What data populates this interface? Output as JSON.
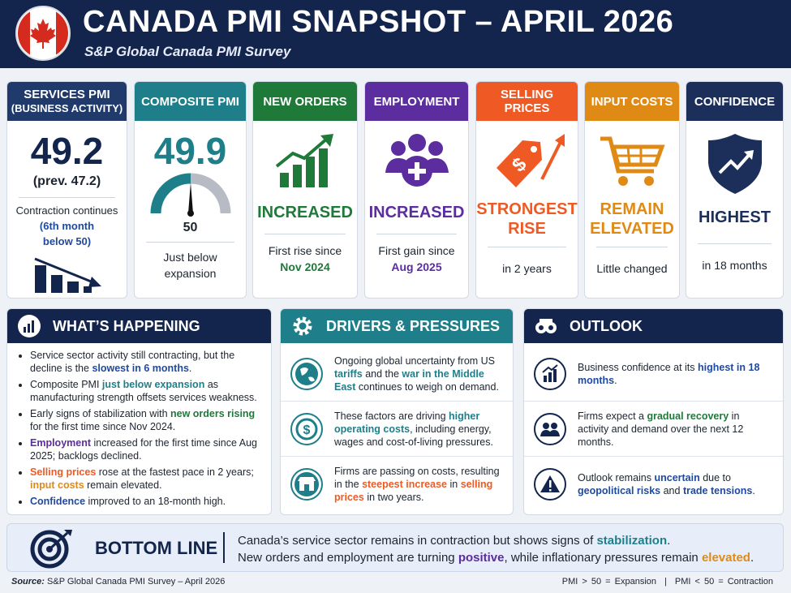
{
  "header": {
    "title": "CANADA PMI SNAPSHOT – APRIL 2026",
    "subtitle": "S&P Global Canada PMI Survey"
  },
  "cards": [
    {
      "title": [
        "SERVICES PMI",
        "(BUSINESS ACTIVITY)"
      ],
      "value": "49.2",
      "previous": "(prev. 47.2)",
      "detail": [
        "Contraction continues",
        "(6th month",
        "below 50)"
      ]
    },
    {
      "title": [
        "COMPOSITE PMI"
      ],
      "value": "49.9",
      "gauge_label": "50",
      "detail": [
        "Just below",
        "expansion"
      ]
    },
    {
      "title": [
        "NEW ORDERS"
      ],
      "status": [
        "INCREASED"
      ],
      "detail": [
        "First rise since",
        "Nov 2024"
      ]
    },
    {
      "title": [
        "EMPLOYMENT"
      ],
      "status": [
        "INCREASED"
      ],
      "detail": [
        "First gain since",
        "Aug 2025"
      ]
    },
    {
      "title": [
        "SELLING PRICES"
      ],
      "status": [
        "STRONGEST",
        "RISE"
      ],
      "detail": [
        "in 2 years"
      ]
    },
    {
      "title": [
        "INPUT COSTS"
      ],
      "status": [
        "REMAIN",
        "ELEVATED"
      ],
      "detail": [
        "Little changed"
      ]
    },
    {
      "title": [
        "CONFIDENCE"
      ],
      "status": [
        "HIGHEST"
      ],
      "detail": [
        "in 18 months"
      ]
    }
  ],
  "panels": {
    "whats_happening": {
      "title": "WHAT’S HAPPENING",
      "bullets": [
        [
          "Service sector activity still contracting, but the decline is the ",
          "slowest in 6 months",
          "."
        ],
        [
          "Composite PMI ",
          "just below expansion",
          " as manufacturing strength offsets services weakness."
        ],
        [
          "Early signs of stabilization with ",
          "new orders rising",
          " for the first time since Nov 2024."
        ],
        [
          "Employment",
          " increased for the first time since Aug 2025; backlogs declined."
        ],
        [
          "Selling prices",
          " rose at the fastest pace in 2 years; ",
          "input costs",
          " remain elevated."
        ],
        [
          "Confidence",
          " improved to an 18-month high."
        ]
      ]
    },
    "drivers": {
      "title": "DRIVERS & PRESSURES",
      "items": [
        [
          "Ongoing global uncertainty from US ",
          "tariffs",
          " and the ",
          "war in the Middle East",
          " continues to weigh on demand."
        ],
        [
          "These factors are driving ",
          "higher operating costs",
          ", including energy, wages and cost-of-living pressures."
        ],
        [
          "Firms are passing on costs, resulting in the ",
          "steepest increase",
          " in ",
          "selling prices",
          " in two years."
        ]
      ]
    },
    "outlook": {
      "title": "OUTLOOK",
      "items": [
        [
          "Business confidence at its ",
          "highest in 18 months",
          "."
        ],
        [
          "Firms expect a ",
          "gradual recovery",
          " in activity and demand over the next 12 months."
        ],
        [
          "Outlook remains ",
          "uncertain",
          " due to ",
          "geopolitical risks",
          " and ",
          "trade tensions",
          "."
        ]
      ]
    }
  },
  "bottom_line": {
    "title": "BOTTOM LINE",
    "lines": [
      [
        "Canada’s service sector  remains in contraction but shows signs of ",
        "stabilization",
        "."
      ],
      [
        "New orders and employment are turning ",
        "positive",
        ", while inflationary pressures remain ",
        "elevated",
        "."
      ]
    ]
  },
  "footer": {
    "source_label": "Source:",
    "source": "S&P Global Canada PMI Survey – April 2026",
    "legend": [
      "PMI > 50 = Expansion",
      "|",
      "PMI < 50 = Contraction"
    ]
  }
}
